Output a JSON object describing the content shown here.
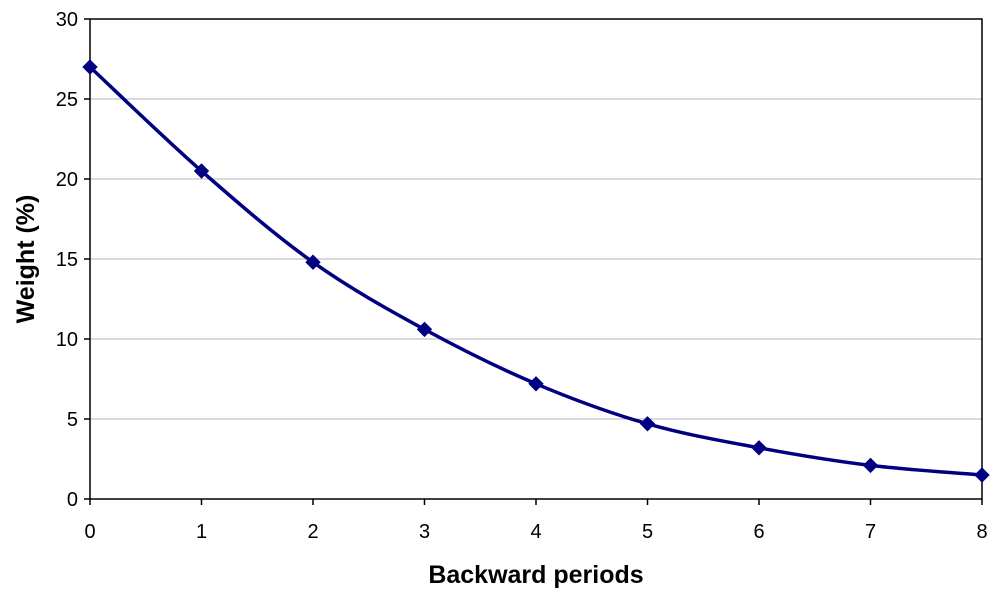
{
  "chart_data": {
    "type": "line",
    "title": "",
    "xlabel": "Backward periods",
    "ylabel": "Weight (%)",
    "x": [
      0,
      1,
      2,
      3,
      4,
      5,
      6,
      7,
      8
    ],
    "series": [
      {
        "values": [
          27.0,
          20.5,
          14.8,
          10.6,
          7.2,
          4.7,
          3.2,
          2.1,
          1.5
        ],
        "color": "#000080"
      }
    ],
    "xlim": [
      0,
      8
    ],
    "ylim": [
      0,
      30
    ],
    "xticks": [
      "0",
      "1",
      "2",
      "3",
      "4",
      "5",
      "6",
      "7",
      "8"
    ],
    "yticks": [
      "0",
      "5",
      "10",
      "15",
      "20",
      "25",
      "30"
    ],
    "grid": "horizontal",
    "marker": "diamond",
    "smooth": true,
    "legend": "none"
  }
}
